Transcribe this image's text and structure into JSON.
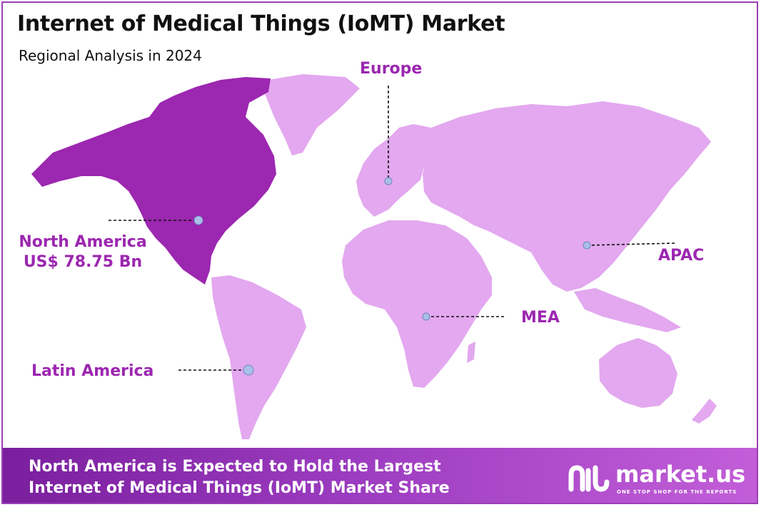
{
  "header": {
    "title": "Internet of Medical Things (IoMT) Market",
    "subtitle": "Regional Analysis in 2024"
  },
  "regions": {
    "north_america": {
      "name": "North America",
      "value": "US$ 78.75 Bn"
    },
    "europe": {
      "name": "Europe"
    },
    "apac": {
      "name": "APAC"
    },
    "mea": {
      "name": "MEA"
    },
    "latin_america": {
      "name": "Latin America"
    }
  },
  "footer": {
    "line1": "North America is Expected to Hold the Largest",
    "line2": "Internet of Medical Things (IoMT) Market Share"
  },
  "brand": {
    "name": "market.us",
    "tagline": "ONE STOP SHOP FOR THE REPORTS"
  },
  "colors": {
    "highlight_region": "#9c27b0",
    "other_regions": "#e3a8ef",
    "label": "#9c27b0",
    "marker": "#a9bfe8"
  }
}
